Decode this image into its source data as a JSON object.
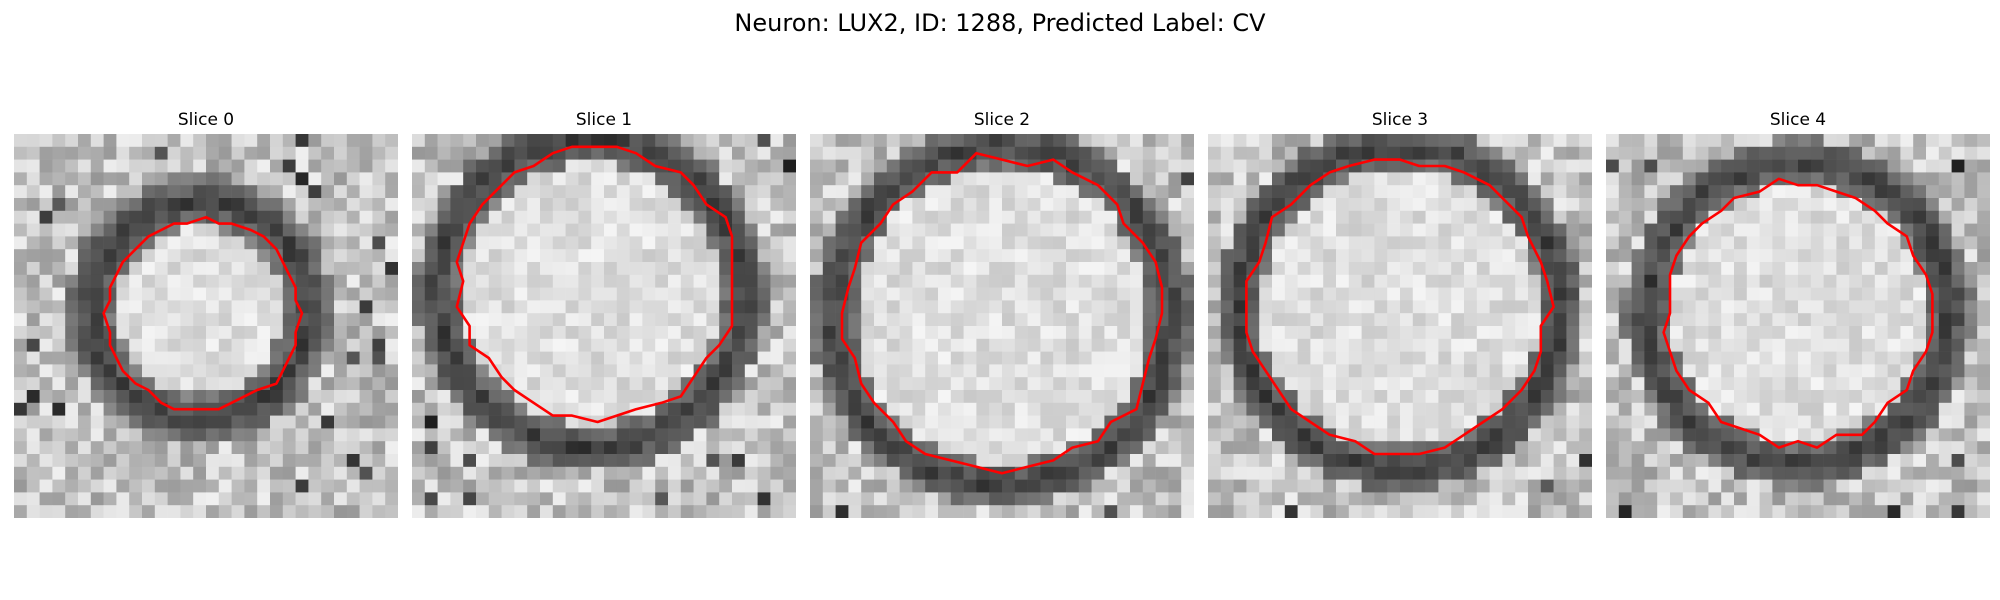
{
  "figure": {
    "title": "Neuron: LUX2, ID: 1288, Predicted Label: CV"
  },
  "panels": [
    {
      "title": "Slice 0"
    },
    {
      "title": "Slice 1"
    },
    {
      "title": "Slice 2"
    },
    {
      "title": "Slice 3"
    },
    {
      "title": "Slice 4"
    }
  ],
  "colors": {
    "contour": "#ff0000",
    "membrane": "#2a2a2a"
  }
}
